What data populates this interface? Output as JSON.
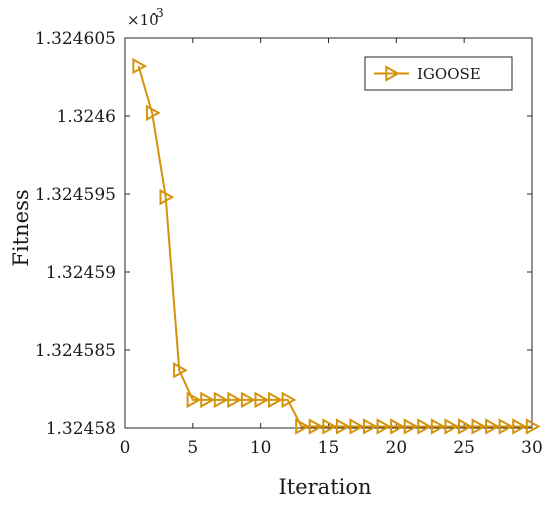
{
  "chart_data": {
    "type": "line",
    "title": "",
    "xlabel": "Iteration",
    "ylabel": "Fitness",
    "y_multiplier_label": "×10",
    "y_multiplier_exp": "-3",
    "xlim": [
      0,
      30
    ],
    "ylim": [
      1.32458,
      1.324605
    ],
    "x_ticks": [
      0,
      5,
      10,
      15,
      20,
      25,
      30
    ],
    "x_tick_labels": [
      "0",
      "5",
      "10",
      "15",
      "20",
      "25",
      "30"
    ],
    "y_ticks": [
      1.32458,
      1.324585,
      1.32459,
      1.324595,
      1.3246,
      1.324605
    ],
    "y_tick_labels": [
      "1.32458",
      "1.324585",
      "1.32459",
      "1.324595",
      "1.3246",
      "1.324605"
    ],
    "grid": false,
    "legend_position": "top-right",
    "series": [
      {
        "name": "IGOOSE",
        "color": "#D4930C",
        "marker": "triangle-right",
        "x": [
          1,
          2,
          3,
          4,
          5,
          6,
          7,
          8,
          9,
          10,
          11,
          12,
          13,
          14,
          15,
          16,
          17,
          18,
          19,
          20,
          21,
          22,
          23,
          24,
          25,
          26,
          27,
          28,
          29,
          30
        ],
        "y": [
          1.3246032,
          1.3246002,
          1.3245948,
          1.3245837,
          1.3245818,
          1.3245818,
          1.3245818,
          1.3245818,
          1.3245818,
          1.3245818,
          1.3245818,
          1.3245818,
          1.3245801,
          1.3245801,
          1.3245801,
          1.3245801,
          1.3245801,
          1.3245801,
          1.3245801,
          1.3245801,
          1.3245801,
          1.3245801,
          1.3245801,
          1.3245801,
          1.3245801,
          1.3245801,
          1.3245801,
          1.3245801,
          1.3245801,
          1.3245801
        ]
      }
    ]
  }
}
